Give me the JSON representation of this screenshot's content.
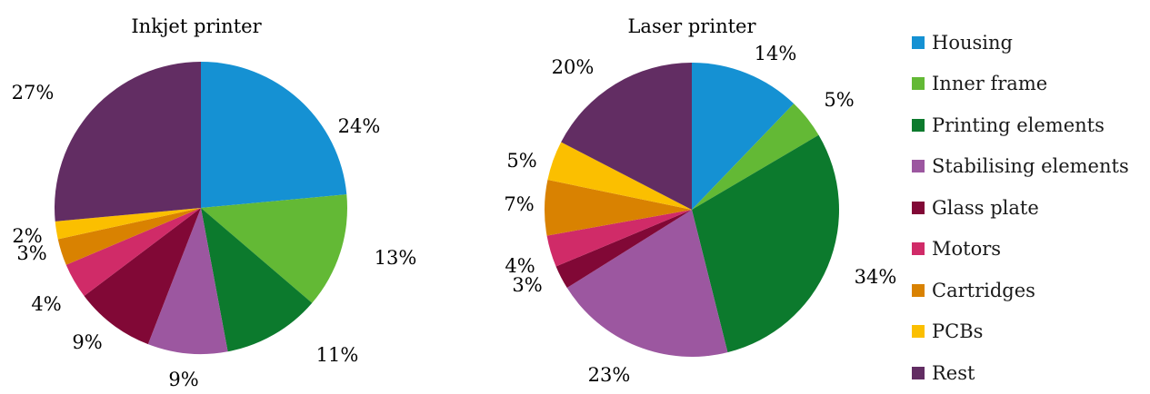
{
  "chart_data": [
    {
      "type": "pie",
      "title": "Inkjet printer",
      "categories": [
        "Housing",
        "Inner frame",
        "Printing elements",
        "Stabilising elements",
        "Glass plate",
        "Motors",
        "Cartridges",
        "PCBs",
        "Rest"
      ],
      "values": [
        24,
        13,
        11,
        9,
        9,
        4,
        3,
        2,
        27
      ],
      "labels": [
        "24%",
        "13%",
        "11%",
        "9%",
        "9%",
        "4%",
        "3%",
        "2%",
        "27%"
      ],
      "start_angle": "12 o'clock",
      "direction": "clockwise"
    },
    {
      "type": "pie",
      "title": "Laser printer",
      "categories": [
        "Housing",
        "Inner frame",
        "Printing elements",
        "Stabilising elements",
        "Glass plate",
        "Motors",
        "Cartridges",
        "PCBs",
        "Rest"
      ],
      "values": [
        14,
        5,
        34,
        23,
        3,
        4,
        7,
        5,
        20
      ],
      "labels": [
        "14%",
        "5%",
        "34%",
        "23%",
        "3%",
        "4%",
        "7%",
        "5%",
        "20%"
      ],
      "start_angle": "12 o'clock",
      "direction": "clockwise"
    }
  ],
  "legend": {
    "placement": "right",
    "entries": [
      {
        "label": "Housing",
        "color": "#1591d3"
      },
      {
        "label": "Inner frame",
        "color": "#63b935"
      },
      {
        "label": "Printing elements",
        "color": "#0c7a2d"
      },
      {
        "label": "Stabilising elements",
        "color": "#9c57a0"
      },
      {
        "label": "Glass plate",
        "color": "#810836"
      },
      {
        "label": "Motors",
        "color": "#d02b68"
      },
      {
        "label": "Cartridges",
        "color": "#d98201"
      },
      {
        "label": "PCBs",
        "color": "#fbbf00"
      },
      {
        "label": "Rest",
        "color": "#622d63"
      }
    ]
  }
}
